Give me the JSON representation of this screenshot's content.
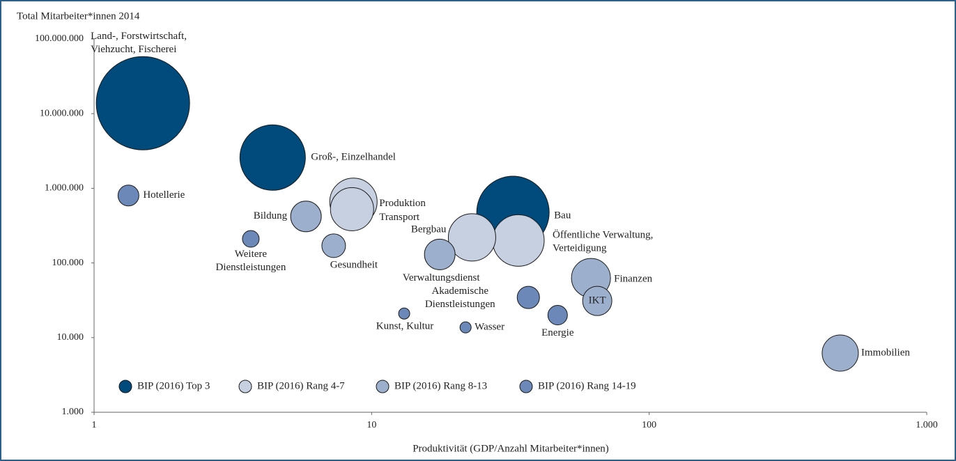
{
  "chart_data": {
    "type": "bubble",
    "ylabel": "Total Mitarbeiter*innen 2014",
    "xlabel": "Produktivität (GDP/Anzahl Mitarbeiter*innen)",
    "xscale": "log",
    "yscale": "log",
    "xlim": [
      1,
      1000
    ],
    "ylim": [
      1000,
      100000000
    ],
    "xticks": [
      1,
      10,
      100,
      {
        "value": 1000,
        "label": "1.000"
      }
    ],
    "yticks": [
      {
        "value": 1000,
        "label": "1.000"
      },
      {
        "value": 10000,
        "label": "10.000"
      },
      {
        "value": 100000,
        "label": "100.000"
      },
      {
        "value": 1000000,
        "label": "1.000.000"
      },
      {
        "value": 10000000,
        "label": "10.000.000"
      },
      {
        "value": 100000000,
        "label": "100.000.000"
      }
    ],
    "legend": "bottom-left",
    "series": [
      {
        "name": "BIP (2016) Top 3",
        "color": "#004a7c",
        "labels": [
          [
            "Land-, Forstwirtschaft,",
            "Viehzucht, Fischerei"
          ],
          [
            "Groß-, Einzelhandel"
          ],
          [
            "Bau"
          ]
        ],
        "x": [
          1.5,
          4.4,
          32.3
        ],
        "values": [
          13800000,
          2580000,
          475000
        ],
        "sizes": [
          4489,
          2209,
          2704
        ]
      },
      {
        "name": "BIP (2016) Rang 4-7",
        "color": "#c6d0e1",
        "labels": [
          [
            "Produktion"
          ],
          [
            "Transport"
          ],
          [
            "Bergbau"
          ],
          [
            "Öffentliche Verwaltung,",
            "Verteidigung"
          ]
        ],
        "x": [
          8.6,
          8.5,
          23,
          33.8
        ],
        "values": [
          660000,
          525000,
          220000,
          200000
        ],
        "sizes": [
          1156,
          961,
          1156,
          1369
        ]
      },
      {
        "name": "BIP (2016) Rang 8-13",
        "color": "#9cafcd",
        "labels": [
          [
            "Bildung"
          ],
          [
            "Gesundheit"
          ],
          [
            "Verwaltungsdienst"
          ],
          [
            "Finanzen"
          ],
          [
            "IKT"
          ],
          [
            "Immobilien"
          ]
        ],
        "x": [
          5.8,
          7.3,
          17.6,
          61.7,
          65,
          488
        ],
        "values": [
          420000,
          170000,
          130000,
          63000,
          31000,
          6200
        ],
        "sizes": [
          484,
          289,
          484,
          784,
          441,
          676
        ]
      },
      {
        "name": "BIP (2016) Rang 14-19",
        "color": "#6b88b8",
        "labels": [
          [
            "Hotellerie"
          ],
          [
            "Weitere",
            "Dienstleistungen"
          ],
          [
            "Akademische",
            "Dienstleistungen"
          ],
          [
            "Energie"
          ],
          [
            "Kunst, Kultur"
          ],
          [
            "Wasser"
          ]
        ],
        "x": [
          1.33,
          3.67,
          36.7,
          46.8,
          13.1,
          21.8
        ],
        "values": [
          800000,
          210000,
          34500,
          20000,
          21000,
          13700
        ],
        "sizes": [
          225,
          144,
          256,
          196,
          64,
          64
        ]
      }
    ]
  }
}
